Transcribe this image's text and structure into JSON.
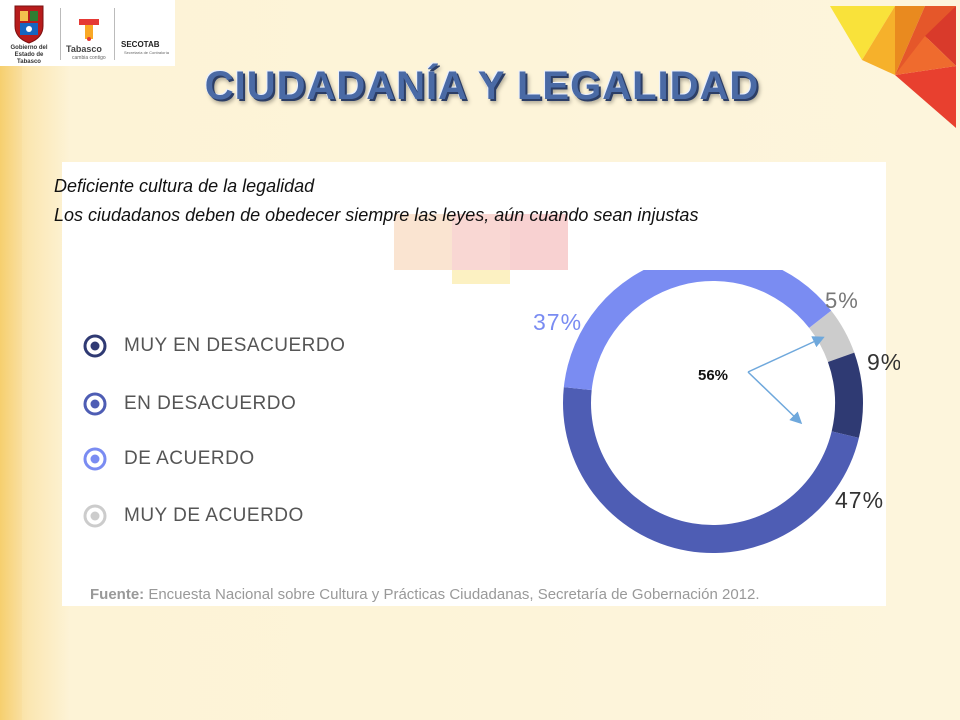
{
  "header": {
    "gov_logo_text": "Gobierno del Estado de Tabasco",
    "tabasco_logo_text": "Tabasco",
    "tabasco_tagline": "cambia contigo",
    "secotab_logo_text": "SECOTAB",
    "secotab_sub": "Secretaría de Contraloría"
  },
  "title": "CIUDADANÍA Y LEGALIDAD",
  "subtitle": "Deficiente cultura de la legalidad",
  "statement": "Los ciudadanos deben de obedecer siempre las leyes, aún cuando sean injustas",
  "legend": [
    {
      "label": "MUY EN DESACUERDO",
      "color": "#2f3a73"
    },
    {
      "label": "EN DESACUERDO",
      "color": "#4e5db4"
    },
    {
      "label": "DE ACUERDO",
      "color": "#7a8cf2"
    },
    {
      "label": "MUY DE ACUERDO",
      "color": "#cccccc"
    }
  ],
  "chart_data": {
    "type": "pie",
    "categories": [
      "MUY DE ACUERDO",
      "MUY EN DESACUERDO",
      "EN DESACUERDO",
      "DE ACUERDO"
    ],
    "values": [
      5,
      9,
      47,
      37
    ],
    "labels": [
      "5%",
      "9%",
      "47%",
      "37%"
    ],
    "colors": [
      "#cccccc",
      "#2f3a73",
      "#4e5db4",
      "#7a8cf2"
    ],
    "annotation": "56%",
    "legend": "left"
  },
  "source": {
    "prefix": "Fuente:",
    "text": " Encuesta Nacional sobre Cultura y Prácticas Ciudadanas, Secretaría de Gobernación 2012."
  }
}
